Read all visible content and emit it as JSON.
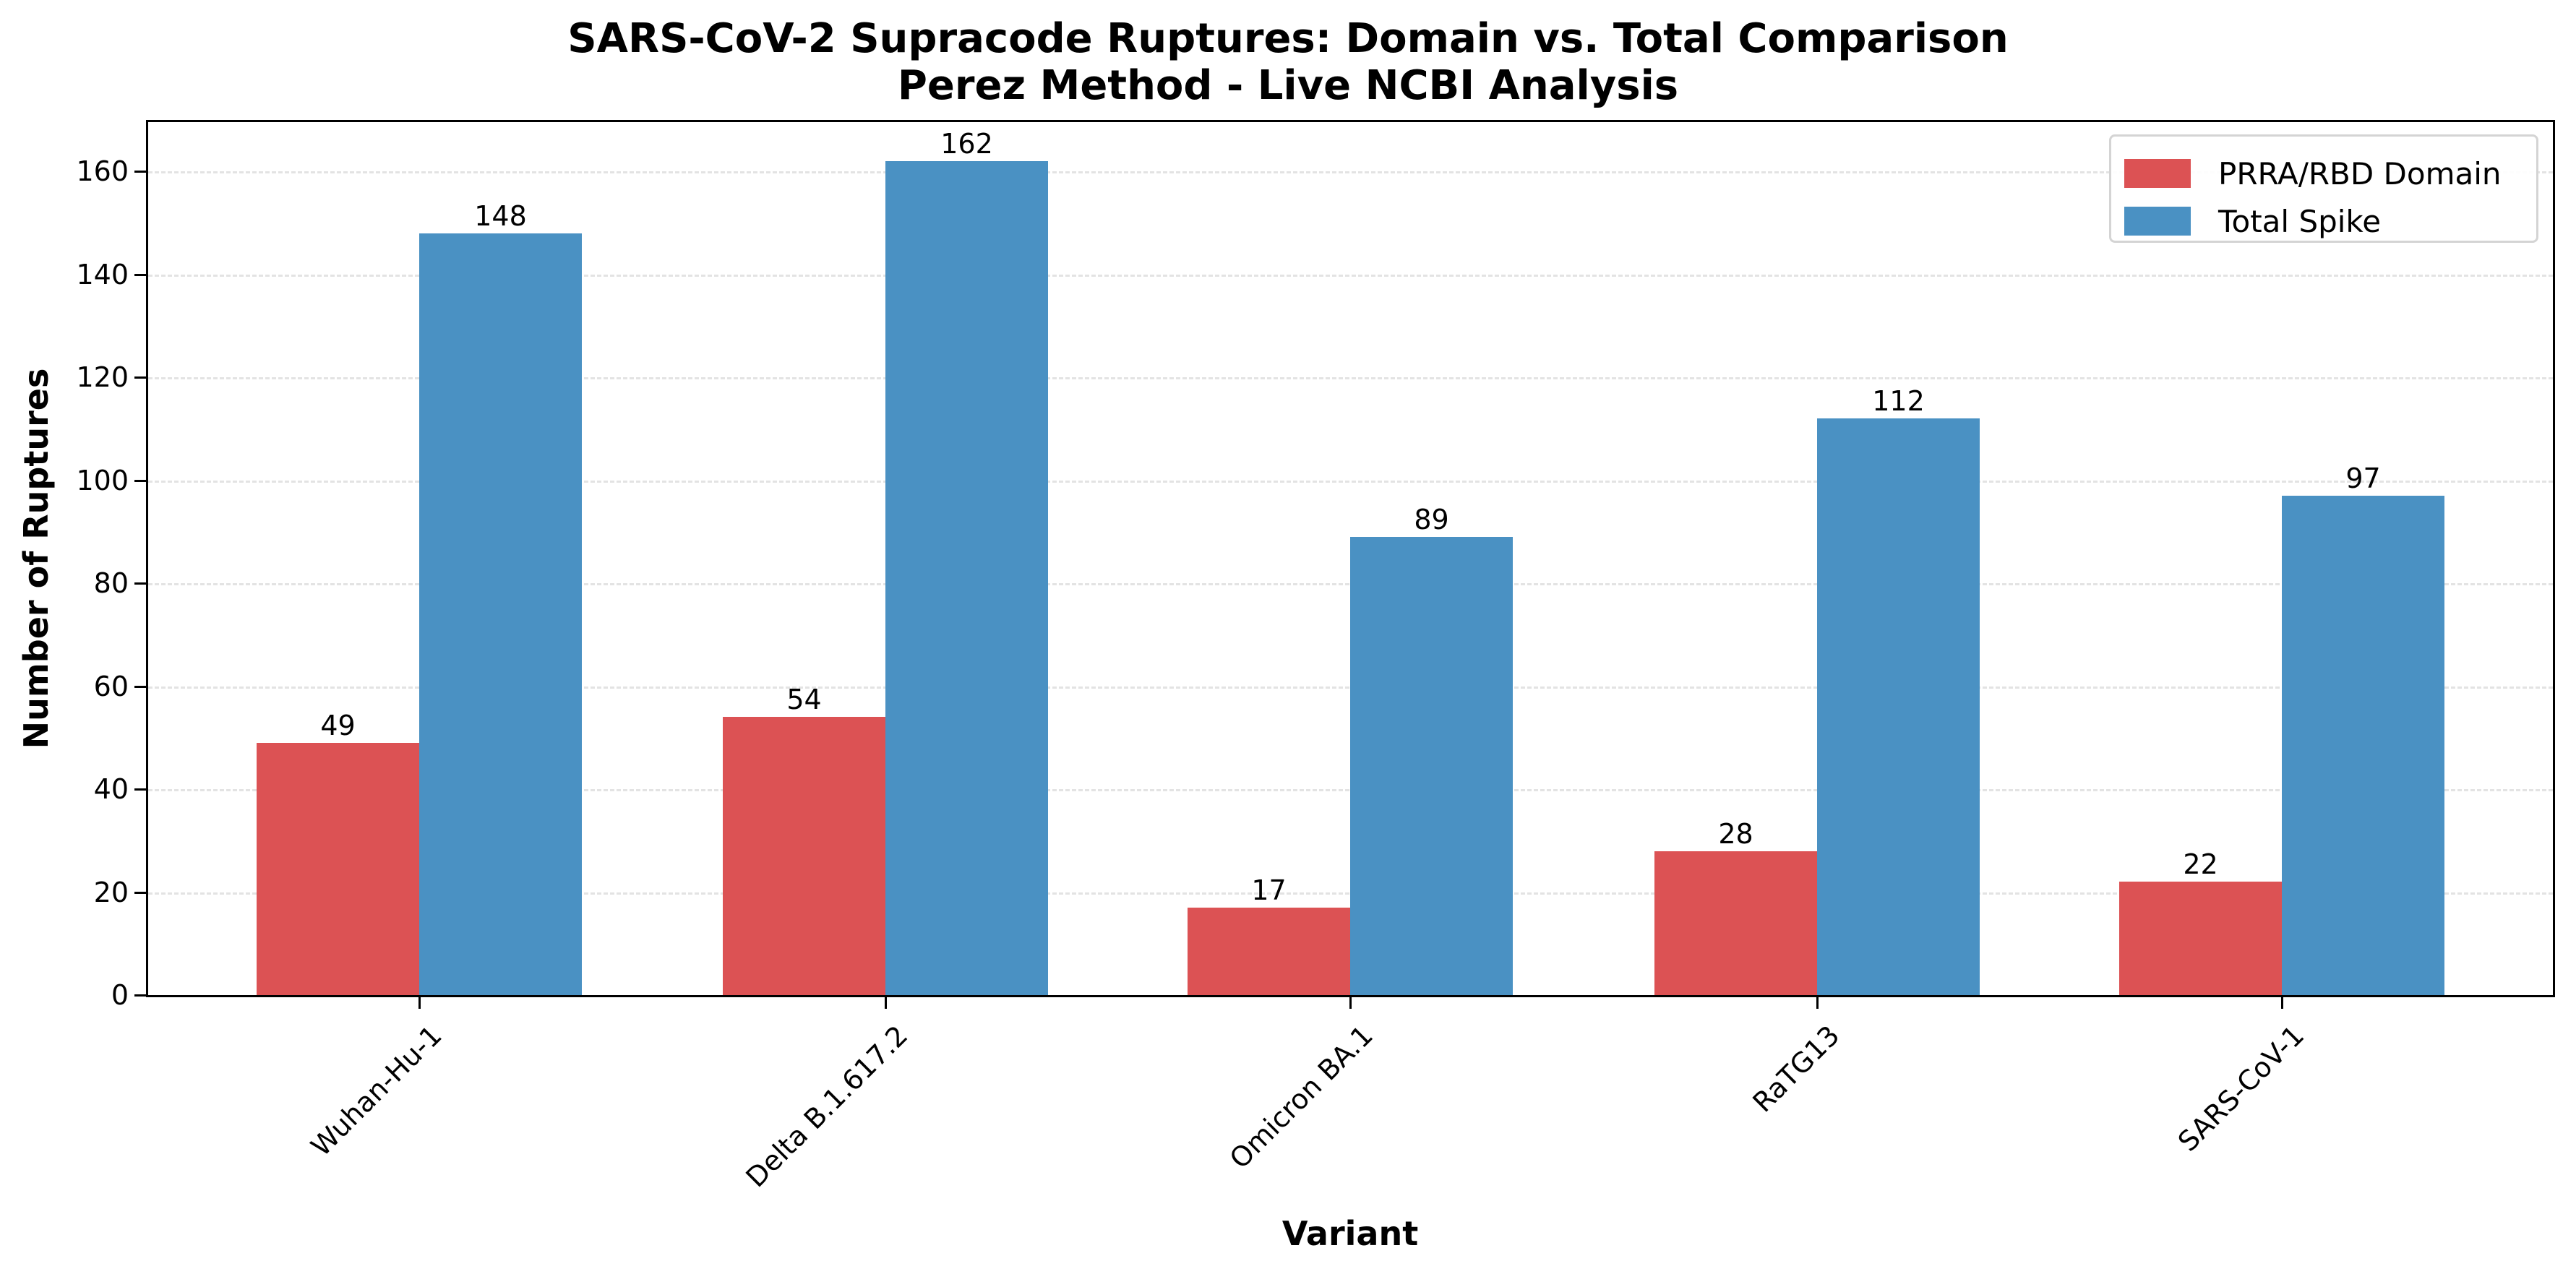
{
  "chart_data": {
    "type": "bar",
    "title": "SARS-CoV-2 Supracode Ruptures: Domain vs. Total Comparison",
    "subtitle": "Perez Method - Live NCBI Analysis",
    "xlabel": "Variant",
    "ylabel": "Number of Ruptures",
    "categories": [
      "Wuhan-Hu-1",
      "Delta B.1.617.2",
      "Omicron BA.1",
      "RaTG13",
      "SARS-CoV-1"
    ],
    "series": [
      {
        "name": "PRRA/RBD Domain",
        "color": "#dc5254",
        "values": [
          49,
          54,
          17,
          28,
          22
        ]
      },
      {
        "name": "Total Spike",
        "color": "#4a91c3",
        "values": [
          148,
          162,
          89,
          112,
          97
        ]
      }
    ],
    "ylim": [
      0,
      170
    ],
    "yticks": [
      0,
      20,
      40,
      60,
      80,
      100,
      120,
      140,
      160
    ],
    "grid": {
      "axis": "y",
      "style": "dashed"
    },
    "legend_position": "upper right",
    "data_labels": true,
    "xtick_rotation": 45
  },
  "title": {
    "line1": "SARS-CoV-2 Supracode Ruptures: Domain vs. Total Comparison",
    "line2": "Perez Method - Live NCBI Analysis"
  },
  "axes": {
    "xlabel": "Variant",
    "ylabel": "Number of Ruptures"
  },
  "legend": {
    "items": [
      {
        "label": "PRRA/RBD Domain",
        "color": "#dc5254"
      },
      {
        "label": "Total Spike",
        "color": "#4a91c3"
      }
    ]
  }
}
